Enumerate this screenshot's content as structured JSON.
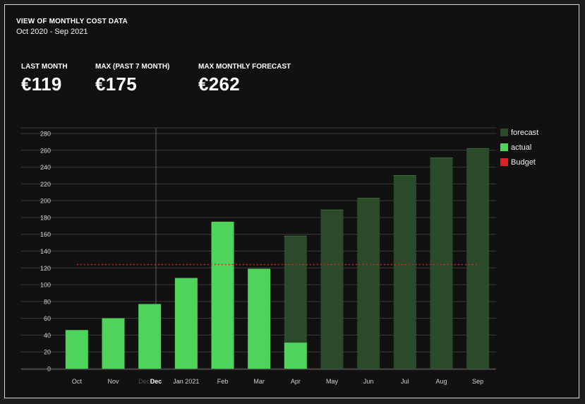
{
  "header": {
    "title": "VIEW OF MONTHLY COST DATA",
    "subtitle": "Oct 2020 - Sep 2021"
  },
  "kpis": [
    {
      "label": "LAST MONTH",
      "value": "€119"
    },
    {
      "label": "MAX (PAST 7 MONTH)",
      "value": "€175"
    },
    {
      "label": "MAX MONTHLY FORECAST",
      "value": "€262"
    }
  ],
  "legend": [
    {
      "label": "forecast",
      "color": "#2a4a2a"
    },
    {
      "label": "actual",
      "color": "#4ed45a"
    },
    {
      "label": "Budget",
      "color": "#e11d2a"
    }
  ],
  "chart_data": {
    "type": "bar",
    "categories": [
      "Oct",
      "Nov",
      "Dec",
      "Jan 2021",
      "Feb",
      "Mar",
      "Apr",
      "May",
      "Jun",
      "Jul",
      "Aug",
      "Sep"
    ],
    "series": [
      {
        "name": "forecast",
        "values": [
          null,
          null,
          null,
          null,
          null,
          null,
          158,
          189,
          203,
          230,
          251,
          262
        ]
      },
      {
        "name": "actual",
        "values": [
          46,
          60,
          77,
          108,
          175,
          119,
          31,
          null,
          null,
          null,
          null,
          null
        ]
      }
    ],
    "budget": {
      "name": "Budget",
      "value": 124
    },
    "ylim": [
      0,
      280
    ],
    "yticks": [
      0,
      20,
      40,
      60,
      80,
      100,
      120,
      140,
      160,
      180,
      200,
      220,
      240,
      260,
      280
    ],
    "hover_label": "Dec",
    "highlight_category": "Dec",
    "grid": true
  }
}
